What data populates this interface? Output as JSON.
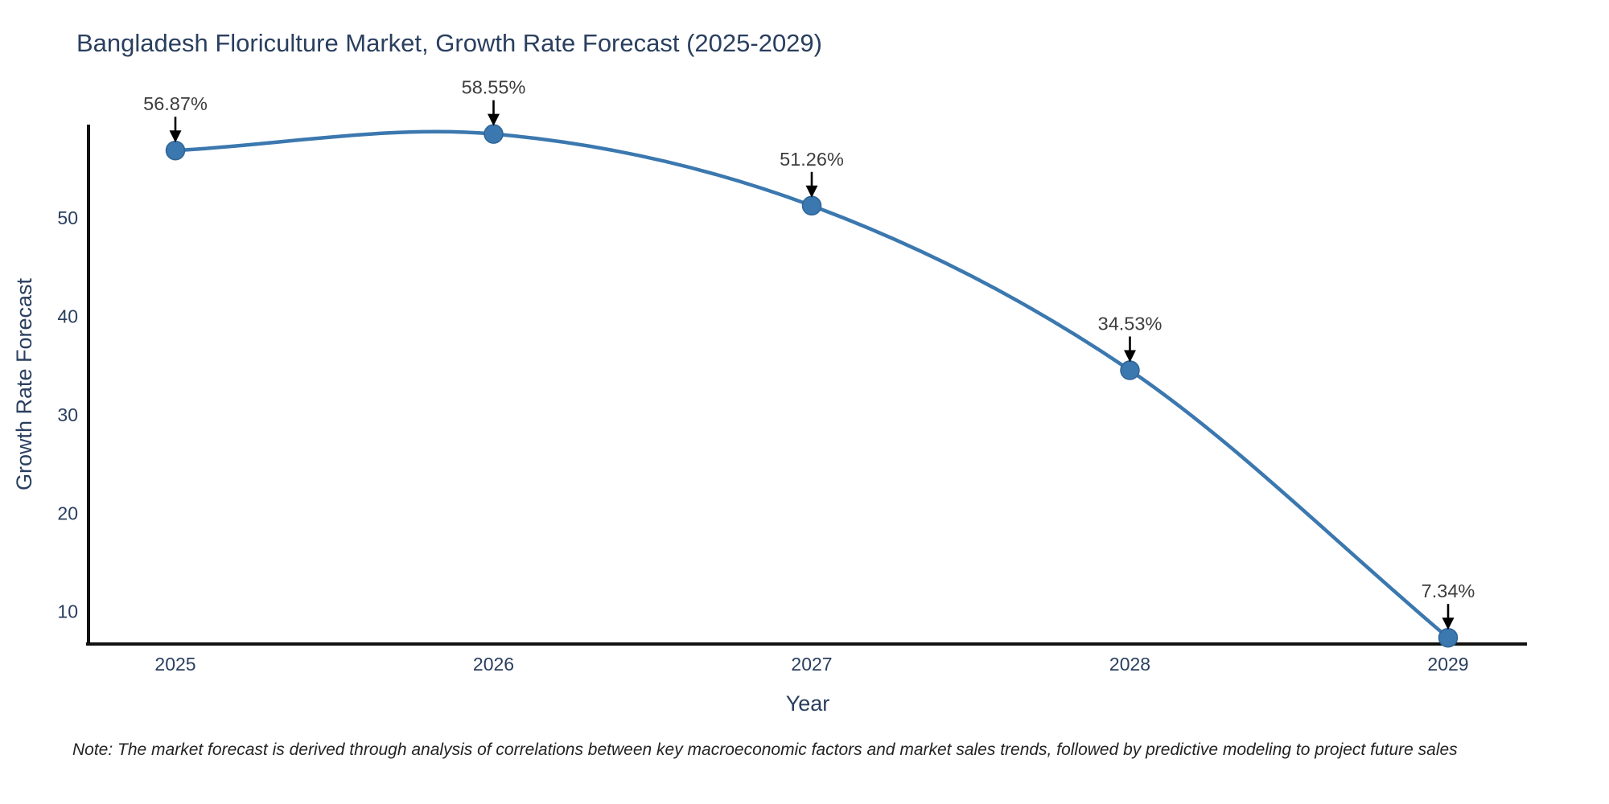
{
  "header": {
    "title": "Bangladesh Floriculture Market, Growth Rate Forecast (2025-2029)"
  },
  "note": {
    "text": "Note: The market forecast is derived through analysis of correlations between key macroeconomic factors and market sales trends, followed by predictive modeling to project future sales"
  },
  "chart_data": {
    "type": "line",
    "title": "Bangladesh Floriculture Market, Growth Rate Forecast (2025-2029)",
    "xlabel": "Year",
    "ylabel": "Growth Rate Forecast",
    "categories": [
      "2025",
      "2026",
      "2027",
      "2028",
      "2029"
    ],
    "values": [
      56.87,
      58.55,
      51.26,
      34.53,
      7.34
    ],
    "point_labels": [
      "56.87%",
      "58.55%",
      "51.26%",
      "34.53%",
      "7.34%"
    ],
    "yticks": [
      10,
      20,
      30,
      40,
      50
    ],
    "ylim": [
      6.7,
      59.5
    ],
    "line_shape": "spline",
    "grid": false,
    "legend_position": "none",
    "annotation_arrows": true,
    "colors": {
      "line": "#3b78af",
      "marker_fill": "#3b78af",
      "marker_edge": "#2e6496",
      "axis_line": "#111111",
      "tick_text": "#2a3f5f",
      "title_text": "#2a3f5f",
      "annotation_text": "#3d3d3d",
      "arrow": "#000000",
      "background": "#ffffff"
    }
  }
}
